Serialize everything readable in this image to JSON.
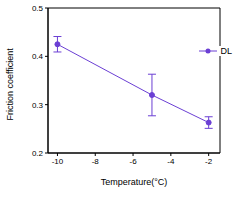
{
  "chart_data": {
    "type": "line",
    "x_label": "Temperature(°C)",
    "y_label": "Friction coefficient",
    "xlim": [
      -10.5,
      -1.4
    ],
    "xticks": [
      -10,
      -8,
      -6,
      -4,
      -2
    ],
    "ylim": [
      0.2,
      0.5
    ],
    "yticks": [
      0.2,
      0.3,
      0.4,
      0.5
    ],
    "x": [
      -10,
      -5,
      -2
    ],
    "series": [
      {
        "name": "DL",
        "color": "#6b3fd4",
        "marker": "circle",
        "line_style": "solid",
        "values": [
          0.425,
          0.32,
          0.263
        ],
        "error": [
          0.016,
          0.043,
          0.012
        ]
      }
    ],
    "legend": "upper right",
    "grid": false
  }
}
